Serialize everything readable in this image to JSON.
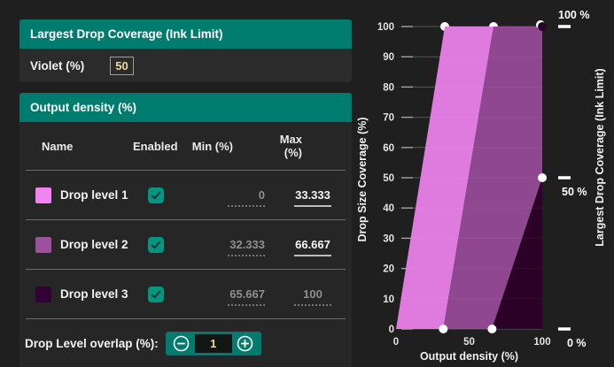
{
  "ink_limit_panel": {
    "title": "Largest Drop Coverage (Ink Limit)",
    "field_label": "Violet (%)",
    "field_value": "50"
  },
  "output_density_panel": {
    "title": "Output density (%)",
    "columns": {
      "name": "Name",
      "enabled": "Enabled",
      "min": "Min (%)",
      "max": "Max (%)"
    },
    "rows": [
      {
        "name": "Drop level 1",
        "swatch": "#ee84ee",
        "enabled": true,
        "min": "0",
        "max": "33.333"
      },
      {
        "name": "Drop level 2",
        "swatch": "#9b519b",
        "enabled": true,
        "min": "32.333",
        "max": "66.667"
      },
      {
        "name": "Drop level 3",
        "swatch": "#330033",
        "enabled": true,
        "min": "65.667",
        "max": "100"
      }
    ],
    "overlap": {
      "label": "Drop Level overlap (%):",
      "value": "1"
    }
  },
  "colors": {
    "accent_teal": "#007c6e",
    "checkbox_teal": "#009682",
    "edited_value": "#ead9a0"
  },
  "chart_data": {
    "type": "area",
    "xlabel": "Output density (%)",
    "ylabel": "Drop Size Coverage (%)",
    "y2label": "Largest Drop Coverage (Ink Limit)",
    "xlim": [
      0,
      100
    ],
    "ylim": [
      0,
      100
    ],
    "x_ticks": [
      0,
      50,
      100
    ],
    "y_ticks": [
      0,
      10,
      20,
      30,
      40,
      50,
      60,
      70,
      80,
      90,
      100
    ],
    "y2_ticks": [
      {
        "value": 100,
        "label": "100 %"
      },
      {
        "value": 50,
        "label": "50 %"
      },
      {
        "value": 0,
        "label": "0 %"
      }
    ],
    "grid": true,
    "legend": "none",
    "series": [
      {
        "name": "Drop level 1",
        "color": "#df7bdf",
        "polygon": [
          [
            0,
            0
          ],
          [
            32.333,
            0
          ],
          [
            66.667,
            100
          ],
          [
            33.333,
            100
          ]
        ]
      },
      {
        "name": "Drop level 2",
        "color": "#8f4890",
        "polygon": [
          [
            32.333,
            0
          ],
          [
            65.667,
            0
          ],
          [
            100,
            50
          ],
          [
            100,
            100
          ],
          [
            66.667,
            100
          ]
        ]
      },
      {
        "name": "Drop level 3",
        "color": "#2c0128",
        "polygon": [
          [
            65.667,
            0
          ],
          [
            100,
            0
          ],
          [
            100,
            50
          ]
        ]
      }
    ],
    "markers": [
      {
        "x": 33.333,
        "y": 100,
        "color": "white",
        "layer": "under"
      },
      {
        "x": 66.667,
        "y": 100,
        "color": "white",
        "layer": "under"
      },
      {
        "x": 32.333,
        "y": 0,
        "color": "white",
        "layer": "over"
      },
      {
        "x": 65.667,
        "y": 0,
        "color": "white",
        "layer": "over"
      },
      {
        "x": 100,
        "y": 50,
        "color": "white",
        "layer": "over"
      },
      {
        "x": 100,
        "y": 100,
        "color": "#2c0128",
        "layer": "over"
      }
    ]
  }
}
